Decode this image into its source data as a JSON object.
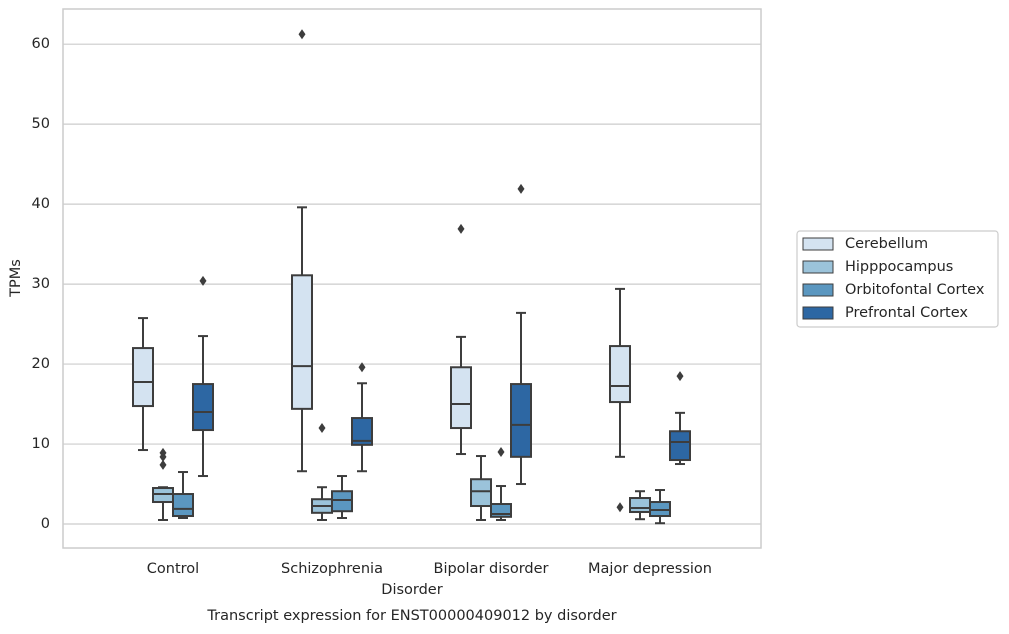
{
  "chart_data": {
    "type": "box",
    "title": "Transcript expression for ENST00000409012 by disorder",
    "xlabel": "Disorder",
    "ylabel": "TPMs",
    "categories": [
      "Control",
      "Schizophrenia",
      "Bipolar disorder",
      "Major depression"
    ],
    "ylim": [
      -3,
      64.4
    ],
    "yticks": [
      0,
      10,
      20,
      30,
      40,
      50,
      60
    ],
    "grid": true,
    "legend": "right",
    "series": [
      {
        "name": "Cerebellum",
        "color": "#d4e3f1",
        "values": [
          {
            "whislo": 9.25,
            "q1": 14.75,
            "med": 17.75,
            "q3": 22,
            "whishi": 25.75,
            "fliers": []
          },
          {
            "whislo": 6.6,
            "q1": 14.4,
            "med": 19.75,
            "q3": 31.1,
            "whishi": 39.6,
            "fliers": [
              61.25
            ]
          },
          {
            "whislo": 8.75,
            "q1": 12,
            "med": 15,
            "q3": 19.6,
            "whishi": 23.4,
            "fliers": [
              36.9
            ]
          },
          {
            "whislo": 8.4,
            "q1": 15.25,
            "med": 17.25,
            "q3": 22.25,
            "whishi": 29.4,
            "fliers": [
              2.1
            ]
          }
        ]
      },
      {
        "name": "Hipppocampus",
        "color": "#9bc3da",
        "values": [
          {
            "whislo": 0.5,
            "q1": 2.75,
            "med": 3.75,
            "q3": 4.5,
            "whishi": 4.6,
            "fliers": [
              8.9,
              8.4,
              7.4
            ]
          },
          {
            "whislo": 0.5,
            "q1": 1.4,
            "med": 2.25,
            "q3": 3.1,
            "whishi": 4.6,
            "fliers": [
              12
            ]
          },
          {
            "whislo": 0.5,
            "q1": 2.25,
            "med": 4.1,
            "q3": 5.6,
            "whishi": 8.5,
            "fliers": []
          },
          {
            "whislo": 0.6,
            "q1": 1.5,
            "med": 2,
            "q3": 3.25,
            "whishi": 4.1,
            "fliers": []
          }
        ]
      },
      {
        "name": "Orbitofontal Cortex",
        "color": "#5b97c0",
        "values": [
          {
            "whislo": 0.75,
            "q1": 1,
            "med": 1.9,
            "q3": 3.75,
            "whishi": 6.5,
            "fliers": []
          },
          {
            "whislo": 0.75,
            "q1": 1.6,
            "med": 3,
            "q3": 4.1,
            "whishi": 6,
            "fliers": []
          },
          {
            "whislo": 0.5,
            "q1": 0.9,
            "med": 1.25,
            "q3": 2.5,
            "whishi": 4.75,
            "fliers": [
              9
            ]
          },
          {
            "whislo": 0.1,
            "q1": 1,
            "med": 1.75,
            "q3": 2.75,
            "whishi": 4.25,
            "fliers": []
          }
        ]
      },
      {
        "name": "Prefrontal Cortex",
        "color": "#2d67a3",
        "values": [
          {
            "whislo": 6,
            "q1": 11.75,
            "med": 14,
            "q3": 17.5,
            "whishi": 23.5,
            "fliers": [
              30.4
            ]
          },
          {
            "whislo": 6.6,
            "q1": 9.9,
            "med": 10.4,
            "q3": 13.25,
            "whishi": 17.6,
            "fliers": [
              19.6
            ]
          },
          {
            "whislo": 5,
            "q1": 8.4,
            "med": 12.4,
            "q3": 17.5,
            "whishi": 26.4,
            "fliers": [
              41.9
            ]
          },
          {
            "whislo": 7.5,
            "q1": 8,
            "med": 10.25,
            "q3": 11.6,
            "whishi": 13.9,
            "fliers": [
              18.5
            ]
          }
        ]
      }
    ]
  }
}
